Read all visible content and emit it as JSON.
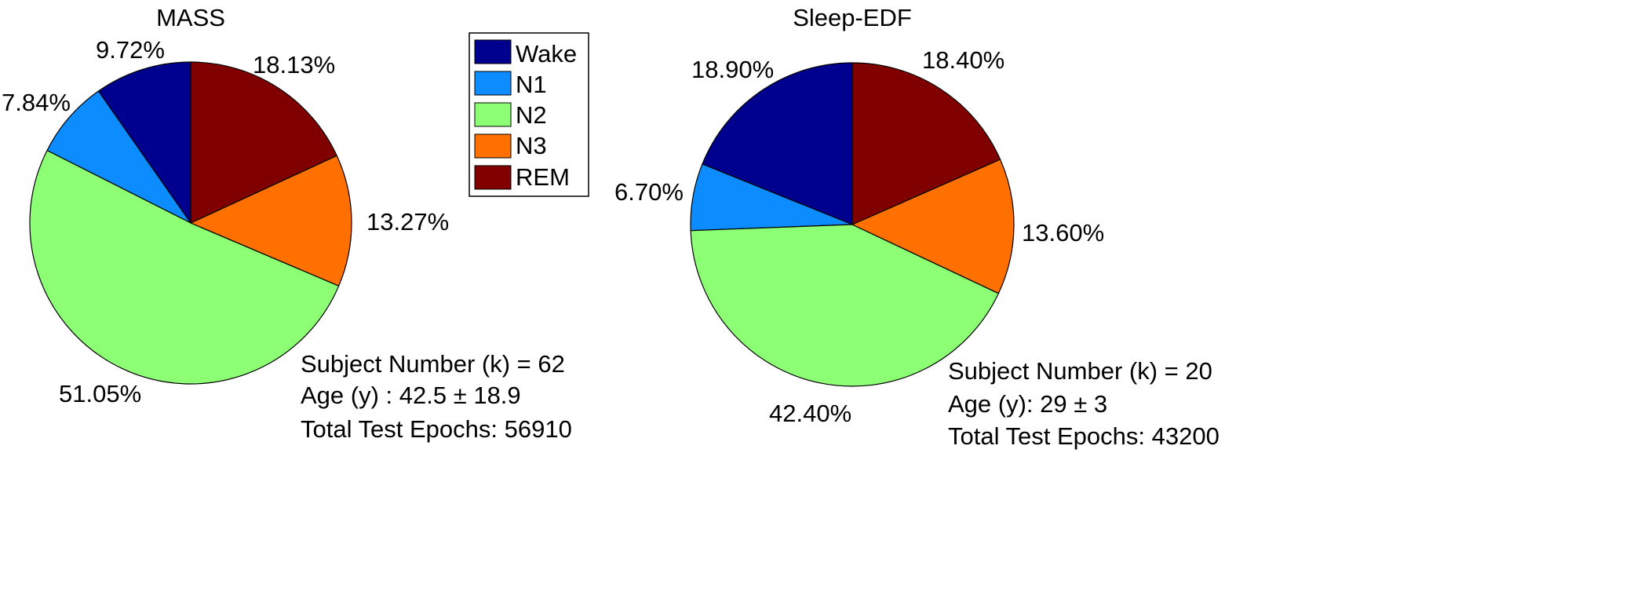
{
  "colors": {
    "Wake": "#00008f",
    "N1": "#0c8cff",
    "N2": "#8cff74",
    "N3": "#ff7000",
    "REM": "#800000"
  },
  "legend": {
    "entries": [
      "Wake",
      "N1",
      "N2",
      "N3",
      "REM"
    ]
  },
  "chart_data": [
    {
      "type": "pie",
      "title": "MASS",
      "categories": [
        "Wake",
        "N1",
        "N2",
        "N3",
        "REM"
      ],
      "values": [
        9.72,
        7.84,
        51.05,
        13.27,
        18.13
      ],
      "labels": [
        "9.72%",
        "7.84%",
        "51.05%",
        "13.27%",
        "18.13%"
      ],
      "info": [
        "Subject Number (k) = 62",
        "Age (y) : 42.5 ± 18.9",
        "Total Test Epochs: 56910"
      ]
    },
    {
      "type": "pie",
      "title": "Sleep-EDF",
      "categories": [
        "Wake",
        "N1",
        "N2",
        "N3",
        "REM"
      ],
      "values": [
        18.9,
        6.7,
        42.4,
        13.6,
        18.4
      ],
      "labels": [
        "18.90%",
        "6.70%",
        "42.40%",
        "13.60%",
        "18.40%"
      ],
      "info": [
        "Subject Number (k) = 20",
        "Age (y): 29 ± 3",
        "Total Test Epochs: 43200"
      ]
    }
  ]
}
